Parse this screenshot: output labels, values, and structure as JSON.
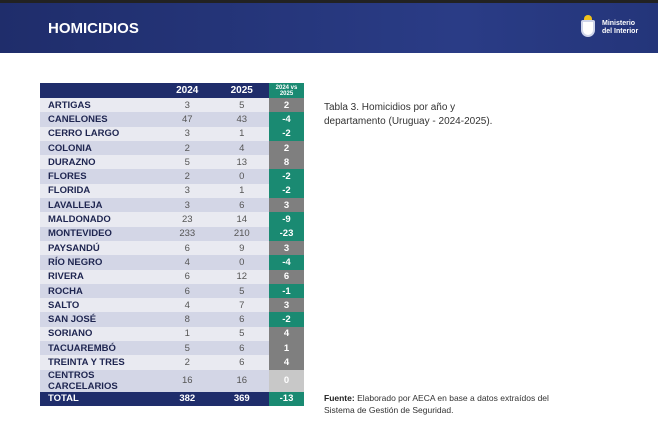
{
  "header": {
    "title": "HOMICIDIOS",
    "logo_line1": "Ministerio",
    "logo_line2": "del Interior"
  },
  "table": {
    "columns": [
      "",
      "2024",
      "2025",
      "2024 vs 2025"
    ],
    "rows": [
      [
        "ARTIGAS",
        3,
        5,
        2
      ],
      [
        "CANELONES",
        47,
        43,
        -4
      ],
      [
        "CERRO LARGO",
        3,
        1,
        -2
      ],
      [
        "COLONIA",
        2,
        4,
        2
      ],
      [
        "DURAZNO",
        5,
        13,
        8
      ],
      [
        "FLORES",
        2,
        0,
        -2
      ],
      [
        "FLORIDA",
        3,
        1,
        -2
      ],
      [
        "LAVALLEJA",
        3,
        6,
        3
      ],
      [
        "MALDONADO",
        23,
        14,
        -9
      ],
      [
        "MONTEVIDEO",
        233,
        210,
        -23
      ],
      [
        "PAYSANDÚ",
        6,
        9,
        3
      ],
      [
        "RÍO NEGRO",
        4,
        0,
        -4
      ],
      [
        "RIVERA",
        6,
        12,
        6
      ],
      [
        "ROCHA",
        6,
        5,
        -1
      ],
      [
        "SALTO",
        4,
        7,
        3
      ],
      [
        "SAN JOSÉ",
        8,
        6,
        -2
      ],
      [
        "SORIANO",
        1,
        5,
        4
      ],
      [
        "TACUAREMBÓ",
        5,
        6,
        1
      ],
      [
        "TREINTA Y TRES",
        2,
        6,
        4
      ],
      [
        "CENTROS CARCELARIOS",
        16,
        16,
        0
      ]
    ],
    "total": [
      "TOTAL",
      382,
      369,
      -13
    ]
  },
  "colors": {
    "increase": "#7f7f7f",
    "decrease": "#1a8a72",
    "no_change": "#c8c8c8",
    "navy": "#1f2d6b"
  },
  "caption": "Tabla 3. Homicidios por año y departamento (Uruguay - 2024-2025).",
  "source": {
    "label": "Fuente:",
    "text": " Elaborado por AECA en base a datos extraídos del Sistema de Gestión de Seguridad."
  }
}
